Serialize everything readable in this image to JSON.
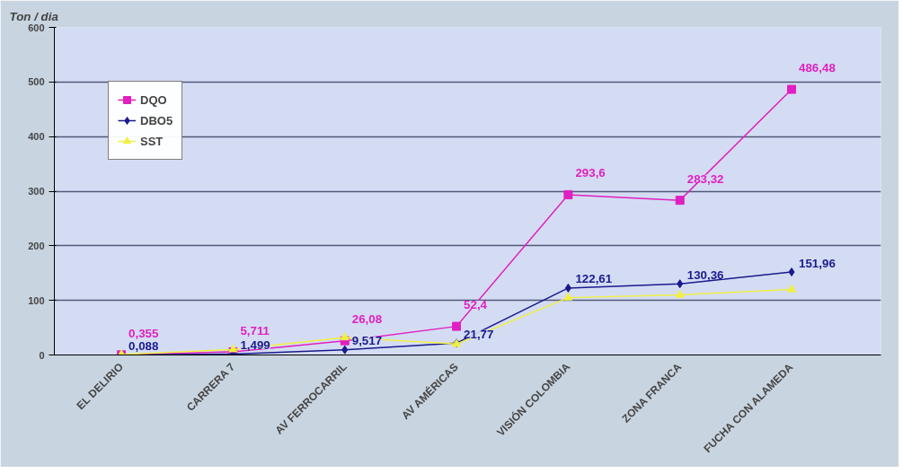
{
  "chart_data": {
    "type": "line",
    "ylabel": "Ton / dia",
    "categories": [
      "EL DELIRIO",
      "CARRERA 7",
      "AV FERROCARRIL",
      "AV AMÉRICAS",
      "VISIÓN COLOMBIA",
      "ZONA FRANCA",
      "FUCHA CON ALAMEDA"
    ],
    "series": [
      {
        "name": "DQO",
        "color": "#e020c0",
        "marker": "square",
        "values": [
          0.355,
          5.711,
          26.08,
          52.4,
          293.6,
          283.32,
          486.48
        ],
        "value_labels": [
          "0,355",
          "5,711",
          "26,08",
          "52,4",
          "293,6",
          "283,32",
          "486,48"
        ]
      },
      {
        "name": "DBO5",
        "color": "#1a1a8c",
        "marker": "diamond",
        "values": [
          0.088,
          1.499,
          9.517,
          21.77,
          122.61,
          130.36,
          151.96
        ],
        "value_labels": [
          "0,088",
          "1,499",
          "9,517",
          "21,77",
          "122,61",
          "130,36",
          "151,96"
        ]
      },
      {
        "name": "SST",
        "color": "#f0f040",
        "marker": "triangle",
        "values": [
          1,
          10,
          32,
          20,
          105,
          110,
          120
        ],
        "value_labels": [
          null,
          null,
          null,
          null,
          null,
          null,
          null
        ]
      }
    ],
    "ylim": [
      0,
      600
    ],
    "yticks": [
      0,
      100,
      200,
      300,
      400,
      500,
      600
    ],
    "grid": "y",
    "legend": "top left"
  }
}
